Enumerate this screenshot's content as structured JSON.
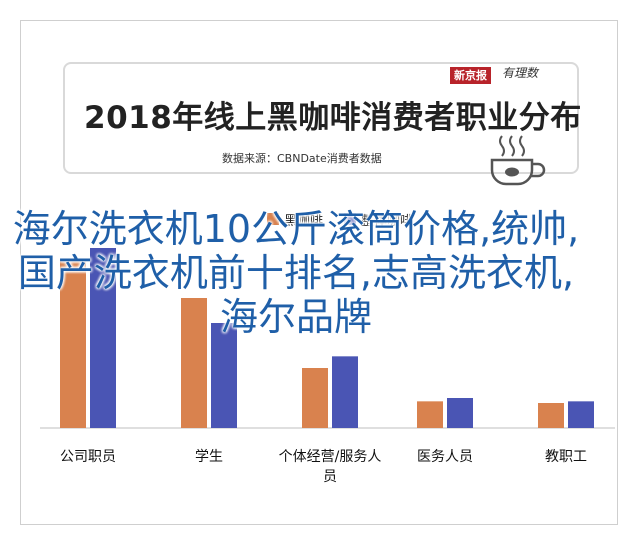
{
  "banner": {
    "title": "2018年线上黑咖啡消费者职业分布",
    "source": "数据来源：CBNDate消费者数据",
    "brand_box": "新京报",
    "brand_script": "有理数"
  },
  "overlay_text": "海尔洗衣机10公斤滚筒价格,统帅,国产洗衣机前十排名,志高洗衣机,海尔品牌",
  "chart_data": {
    "type": "bar",
    "title": "2018年线上黑咖啡消费者职业分布",
    "categories": [
      "公司职员",
      "学生",
      "个体经营/服务人员",
      "医务人员",
      "教职工"
    ],
    "series": [
      {
        "name": "黑咖啡",
        "color": "#d9824e",
        "values": [
          100,
          78,
          36,
          16,
          15
        ]
      },
      {
        "name": "整体咖啡",
        "color": "#4a55b4",
        "values": [
          108,
          63,
          43,
          18,
          16
        ]
      }
    ],
    "ylim": [
      0,
      120
    ],
    "legend_position": "top",
    "grid": false
  }
}
